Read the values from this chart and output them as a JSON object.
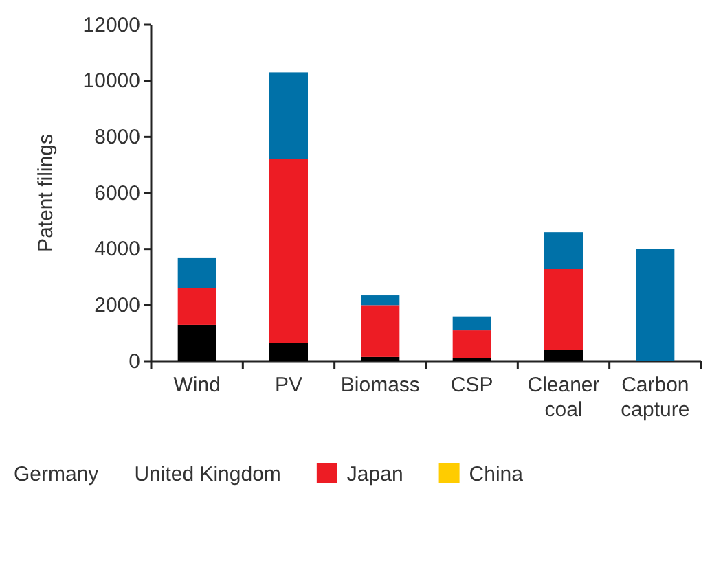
{
  "chart_data": {
    "type": "bar",
    "stacked": true,
    "ylabel": "Patent filings",
    "categories": [
      "Wind",
      "PV",
      "Biomass",
      "CSP",
      "Cleaner coal",
      "Carbon capture"
    ],
    "series": [
      {
        "color": "#000000",
        "values": [
          1300,
          650,
          150,
          100,
          400,
          0
        ]
      },
      {
        "name": "Japan",
        "color": "#ed1c24",
        "values": [
          1300,
          6550,
          1850,
          1000,
          2900,
          0
        ]
      },
      {
        "color": "#0071a8",
        "values": [
          1100,
          3100,
          350,
          500,
          1300,
          4000
        ]
      },
      {
        "name": "China",
        "color": "#ffcc00",
        "values": [
          null,
          null,
          null,
          null,
          null,
          null
        ]
      }
    ],
    "ylim": [
      0,
      12000
    ],
    "yticks": [
      0,
      2000,
      4000,
      6000,
      8000,
      10000,
      12000
    ],
    "legend": "bottom",
    "annotations": [
      "Germany",
      "United Kingdom"
    ]
  }
}
